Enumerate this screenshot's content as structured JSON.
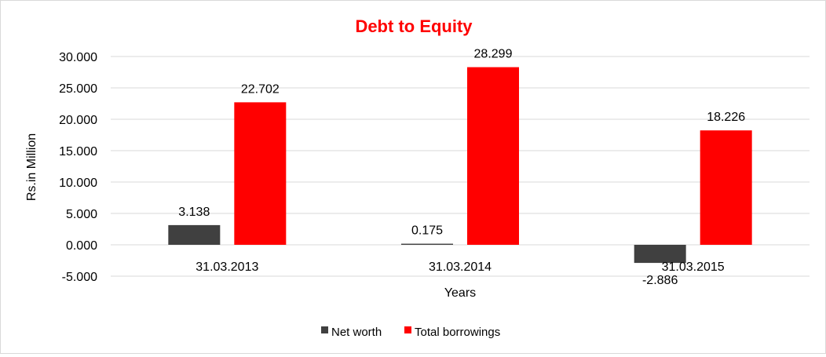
{
  "chart_data": {
    "type": "bar",
    "title": "Debt to Equity",
    "xlabel": "Years",
    "ylabel": "Rs.in Million",
    "categories": [
      "31.03.2013",
      "31.03.2014",
      "31.03.2015"
    ],
    "series": [
      {
        "name": "Net worth",
        "values": [
          3.138,
          0.175,
          -2.886
        ],
        "labels": [
          "3.138",
          "0.175",
          "-2.886"
        ],
        "color": "#404040"
      },
      {
        "name": "Total borrowings",
        "values": [
          22.702,
          28.299,
          18.226
        ],
        "labels": [
          "22.702",
          "28.299",
          "18.226"
        ],
        "color": "#ff0000"
      }
    ],
    "ylim": [
      -5,
      30
    ],
    "yticks": [
      30,
      25,
      20,
      15,
      10,
      5,
      0,
      -5
    ],
    "ytick_labels": [
      "30.000",
      "25.000",
      "20.000",
      "15.000",
      "10.000",
      "5.000",
      "0.000",
      "-5.000"
    ],
    "grid": true,
    "legend_position": "bottom",
    "title_color": "#ff0000"
  }
}
